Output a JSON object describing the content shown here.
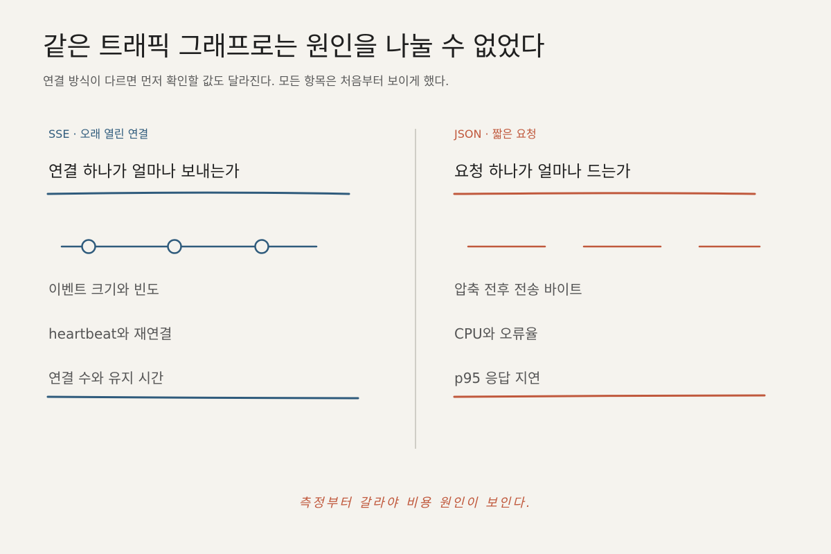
{
  "header": {
    "title": "같은 트래픽 그래프로는 원인을 나눌 수 없었다",
    "subtitle": "연결 방식이 다르면 먼저 확인할 값도 달라진다. 모든 항목은 처음부터 보이게 했다."
  },
  "left": {
    "tag": "SSE · 오래 열린 연결",
    "heading": "연결 하나가 얼마나 보내는가",
    "items": [
      "이벤트 크기와 빈도",
      "heartbeat와 재연결",
      "연결 수와 유지 시간"
    ],
    "accent": "#2f5b7c"
  },
  "right": {
    "tag": "JSON · 짧은 요청",
    "heading": "요청 하나가 얼마나 드는가",
    "items": [
      "압축 전후 전송 바이트",
      "CPU와 오류율",
      "p95 응답 지연"
    ],
    "accent": "#c0583c"
  },
  "footer": {
    "text": "측정부터 갈라야 비용 원인이 보인다."
  }
}
